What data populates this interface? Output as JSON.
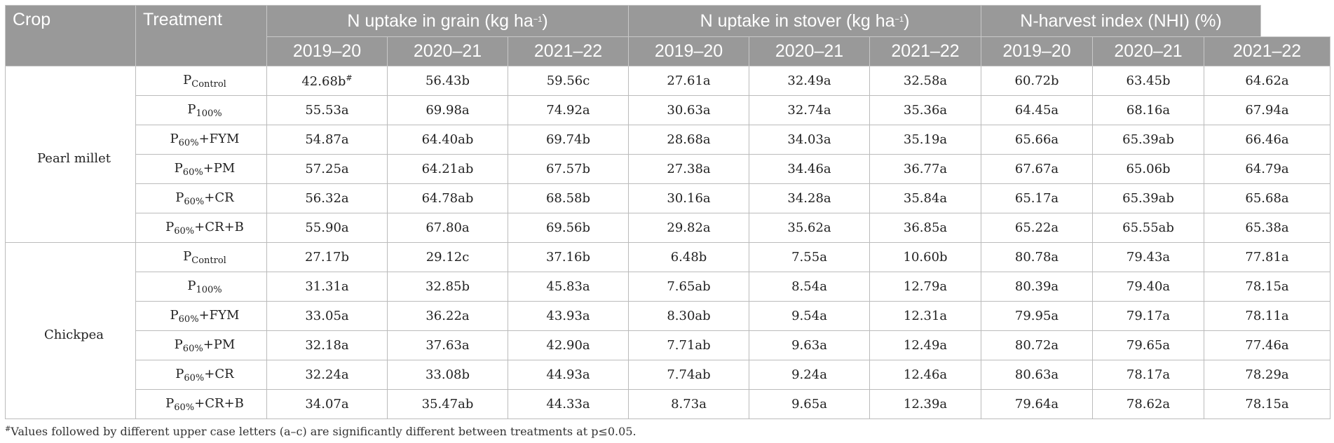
{
  "header": {
    "crop": "Crop",
    "treatment": "Treatment",
    "groups": [
      {
        "label": "N uptake in grain (kg ha",
        "sup": "−1",
        "close": ")"
      },
      {
        "label": "N uptake in stover (kg ha",
        "sup": "−1",
        "close": ")"
      },
      {
        "label": "N-harvest index (NHI) (%)",
        "sup": "",
        "close": ""
      }
    ],
    "years": [
      "2019–20",
      "2020–21",
      "2021–22"
    ]
  },
  "crops": [
    {
      "name": "Pearl millet",
      "rows": [
        {
          "p": "P",
          "sub": "Control",
          "rest": "",
          "vals": [
            "42.68b",
            "56.43b",
            "59.56c",
            "27.61a",
            "32.49a",
            "32.58a",
            "60.72b",
            "63.45b",
            "64.62a"
          ],
          "note": "#"
        },
        {
          "p": "P",
          "sub": "100%",
          "rest": "",
          "vals": [
            "55.53a",
            "69.98a",
            "74.92a",
            "30.63a",
            "32.74a",
            "35.36a",
            "64.45a",
            "68.16a",
            "67.94a"
          ]
        },
        {
          "p": "P",
          "sub": "60%",
          "rest": "+FYM",
          "vals": [
            "54.87a",
            "64.40ab",
            "69.74b",
            "28.68a",
            "34.03a",
            "35.19a",
            "65.66a",
            "65.39ab",
            "66.46a"
          ]
        },
        {
          "p": "P",
          "sub": "60%",
          "rest": "+PM",
          "vals": [
            "57.25a",
            "64.21ab",
            "67.57b",
            "27.38a",
            "34.46a",
            "36.77a",
            "67.67a",
            "65.06b",
            "64.79a"
          ]
        },
        {
          "p": "P",
          "sub": "60%",
          "rest": "+CR",
          "vals": [
            "56.32a",
            "64.78ab",
            "68.58b",
            "30.16a",
            "34.28a",
            "35.84a",
            "65.17a",
            "65.39ab",
            "65.68a"
          ]
        },
        {
          "p": "P",
          "sub": "60%",
          "rest": "+CR+B",
          "vals": [
            "55.90a",
            "67.80a",
            "69.56b",
            "29.82a",
            "35.62a",
            "36.85a",
            "65.22a",
            "65.55ab",
            "65.38a"
          ]
        }
      ]
    },
    {
      "name": "Chickpea",
      "rows": [
        {
          "p": "P",
          "sub": "Control",
          "rest": "",
          "vals": [
            "27.17b",
            "29.12c",
            "37.16b",
            "6.48b",
            "7.55a",
            "10.60b",
            "80.78a",
            "79.43a",
            "77.81a"
          ]
        },
        {
          "p": "P",
          "sub": "100%",
          "rest": "",
          "vals": [
            "31.31a",
            "32.85b",
            "45.83a",
            "7.65ab",
            "8.54a",
            "12.79a",
            "80.39a",
            "79.40a",
            "78.15a"
          ]
        },
        {
          "p": "P",
          "sub": "60%",
          "rest": "+FYM",
          "vals": [
            "33.05a",
            "36.22a",
            "43.93a",
            "8.30ab",
            "9.54a",
            "12.31a",
            "79.95a",
            "79.17a",
            "78.11a"
          ]
        },
        {
          "p": "P",
          "sub": "60%",
          "rest": "+PM",
          "vals": [
            "32.18a",
            "37.63a",
            "42.90a",
            "7.71ab",
            "9.63a",
            "12.49a",
            "80.72a",
            "79.65a",
            "77.46a"
          ]
        },
        {
          "p": "P",
          "sub": "60%",
          "rest": "+CR",
          "vals": [
            "32.24a",
            "33.08b",
            "44.93a",
            "7.74ab",
            "9.24a",
            "12.46a",
            "80.63a",
            "78.17a",
            "78.29a"
          ]
        },
        {
          "p": "P",
          "sub": "60%",
          "rest": "+CR+B",
          "vals": [
            "34.07a",
            "35.47ab",
            "44.33a",
            "8.73a",
            "9.65a",
            "12.39a",
            "79.64a",
            "78.62a",
            "78.15a"
          ]
        }
      ]
    }
  ],
  "footnote": {
    "mark": "#",
    "text": "Values followed by different upper case letters (a–c) are significantly different between treatments at p≤0.05."
  }
}
